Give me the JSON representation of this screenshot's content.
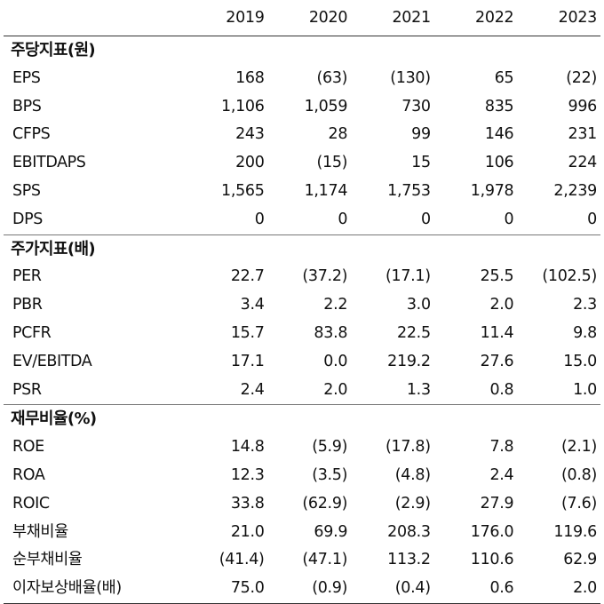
{
  "years": [
    "2019",
    "2020",
    "2021",
    "2022",
    "2023"
  ],
  "sections": [
    {
      "title": "주당지표(원)",
      "rows": [
        {
          "label": "EPS",
          "values": [
            "168",
            "(63)",
            "(130)",
            "65",
            "(22)"
          ]
        },
        {
          "label": "BPS",
          "values": [
            "1,106",
            "1,059",
            "730",
            "835",
            "996"
          ]
        },
        {
          "label": "CFPS",
          "values": [
            "243",
            "28",
            "99",
            "146",
            "231"
          ]
        },
        {
          "label": "EBITDAPS",
          "values": [
            "200",
            "(15)",
            "15",
            "106",
            "224"
          ]
        },
        {
          "label": "SPS",
          "values": [
            "1,565",
            "1,174",
            "1,753",
            "1,978",
            "2,239"
          ]
        },
        {
          "label": "DPS",
          "values": [
            "0",
            "0",
            "0",
            "0",
            "0"
          ]
        }
      ]
    },
    {
      "title": "주가지표(배)",
      "rows": [
        {
          "label": "PER",
          "values": [
            "22.7",
            "(37.2)",
            "(17.1)",
            "25.5",
            "(102.5)"
          ]
        },
        {
          "label": "PBR",
          "values": [
            "3.4",
            "2.2",
            "3.0",
            "2.0",
            "2.3"
          ]
        },
        {
          "label": "PCFR",
          "values": [
            "15.7",
            "83.8",
            "22.5",
            "11.4",
            "9.8"
          ]
        },
        {
          "label": "EV/EBITDA",
          "values": [
            "17.1",
            "0.0",
            "219.2",
            "27.6",
            "15.0"
          ]
        },
        {
          "label": "PSR",
          "values": [
            "2.4",
            "2.0",
            "1.3",
            "0.8",
            "1.0"
          ]
        }
      ]
    },
    {
      "title": "재무비율(%)",
      "rows": [
        {
          "label": "ROE",
          "values": [
            "14.8",
            "(5.9)",
            "(17.8)",
            "7.8",
            "(2.1)"
          ]
        },
        {
          "label": "ROA",
          "values": [
            "12.3",
            "(3.5)",
            "(4.8)",
            "2.4",
            "(0.8)"
          ]
        },
        {
          "label": "ROIC",
          "values": [
            "33.8",
            "(62.9)",
            "(2.9)",
            "27.9",
            "(7.6)"
          ]
        },
        {
          "label": "부채비율",
          "values": [
            "21.0",
            "69.9",
            "208.3",
            "176.0",
            "119.6"
          ]
        },
        {
          "label": "순부채비율",
          "values": [
            "(41.4)",
            "(47.1)",
            "113.2",
            "110.6",
            "62.9"
          ]
        },
        {
          "label": "이자보상배율(배)",
          "values": [
            "75.0",
            "(0.9)",
            "(0.4)",
            "0.6",
            "2.0"
          ]
        }
      ]
    }
  ]
}
